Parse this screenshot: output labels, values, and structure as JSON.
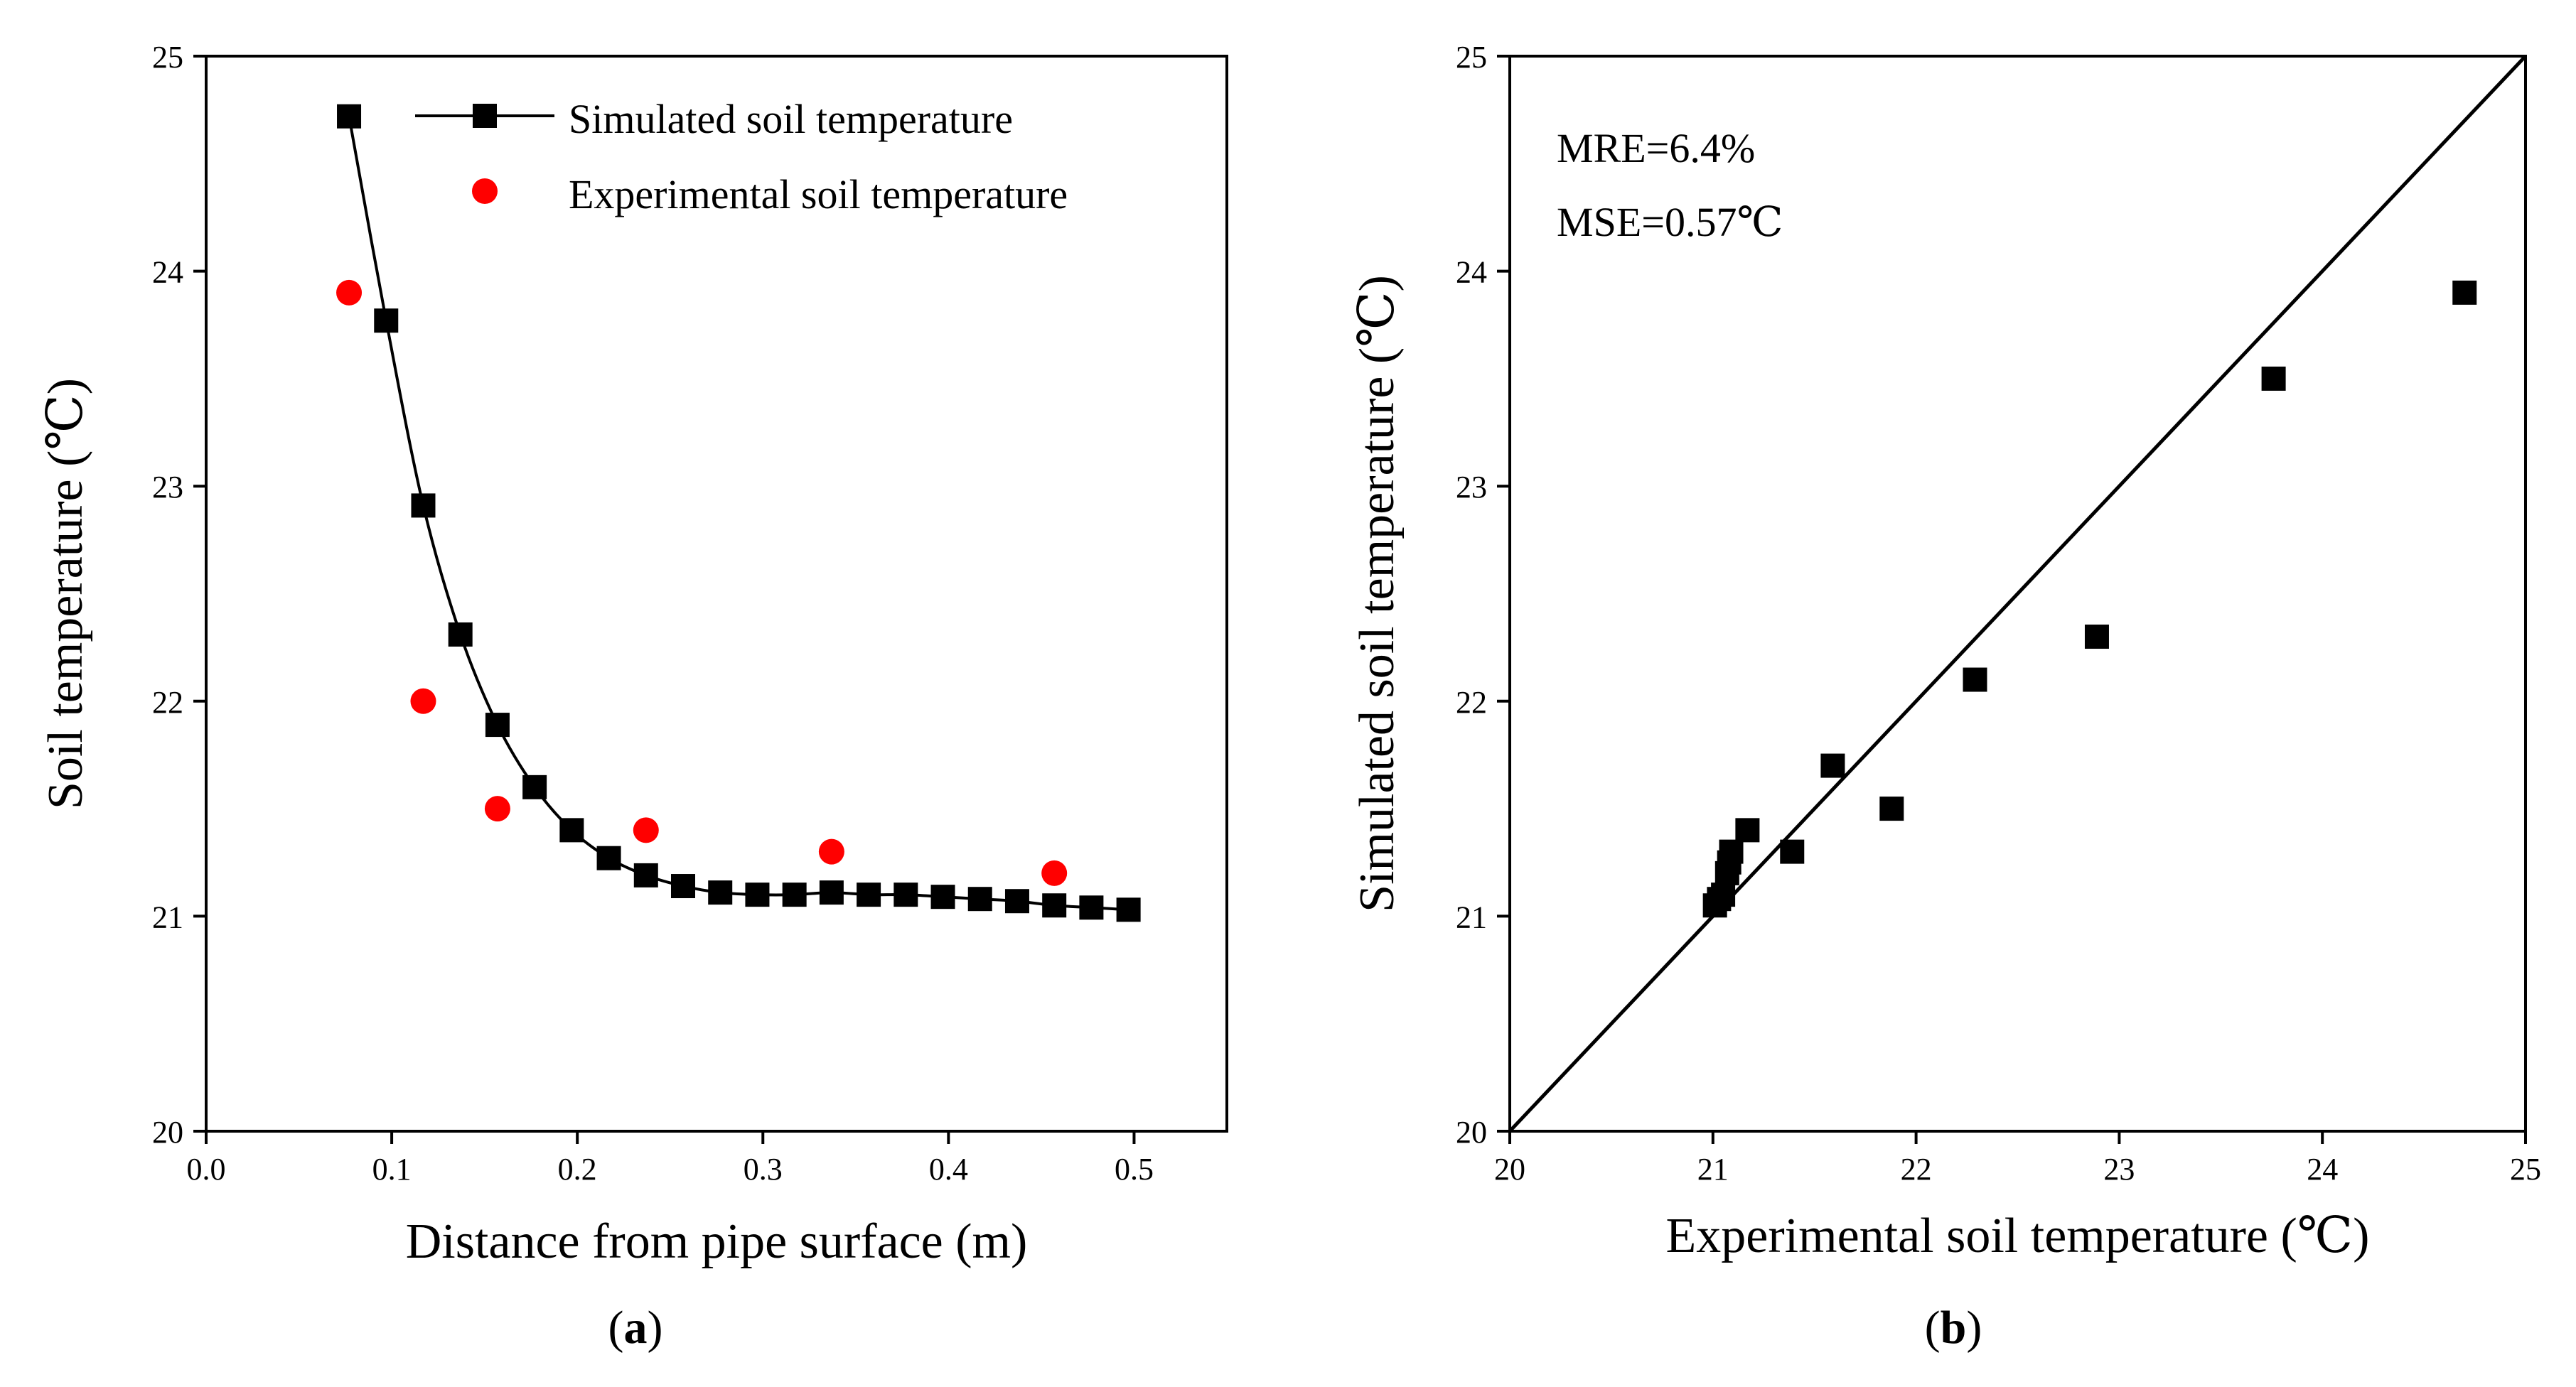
{
  "chart_data": [
    {
      "panel": "(a)",
      "panel_letter": "a",
      "type": "line",
      "xlabel": "Distance from pipe surface (m)",
      "ylabel": "Soil temperature (℃)",
      "xlim": [
        0.0,
        0.55
      ],
      "ylim": [
        20,
        25
      ],
      "xticks": [
        "0.0",
        "0.1",
        "0.2",
        "0.3",
        "0.4",
        "0.5"
      ],
      "yticks": [
        "20",
        "21",
        "22",
        "23",
        "24",
        "25"
      ],
      "grid": false,
      "legend_position": "top-right",
      "series": [
        {
          "name": "Simulated soil temperature",
          "style": "line+square",
          "color": "#000000",
          "x": [
            0.077,
            0.097,
            0.117,
            0.137,
            0.157,
            0.177,
            0.197,
            0.217,
            0.237,
            0.257,
            0.277,
            0.297,
            0.317,
            0.337,
            0.357,
            0.377,
            0.397,
            0.417,
            0.437,
            0.457,
            0.477,
            0.497
          ],
          "y": [
            24.72,
            23.77,
            22.91,
            22.31,
            21.89,
            21.6,
            21.4,
            21.27,
            21.19,
            21.14,
            21.11,
            21.1,
            21.1,
            21.11,
            21.1,
            21.1,
            21.09,
            21.08,
            21.07,
            21.05,
            21.04,
            21.03
          ]
        },
        {
          "name": "Experimental soil temperature",
          "style": "circle",
          "color": "#ff0000",
          "x": [
            0.077,
            0.117,
            0.157,
            0.237,
            0.337,
            0.457
          ],
          "y": [
            23.9,
            22.0,
            21.5,
            21.4,
            21.3,
            21.2
          ]
        }
      ]
    },
    {
      "panel": "(b)",
      "panel_letter": "b",
      "type": "scatter",
      "xlabel": "Experimental soil temperature (℃)",
      "ylabel": "Simulated soil temperature (℃)",
      "xlim": [
        20,
        25
      ],
      "ylim": [
        20,
        25
      ],
      "xticks": [
        "20",
        "21",
        "22",
        "23",
        "24",
        "25"
      ],
      "yticks": [
        "20",
        "21",
        "22",
        "23",
        "24",
        "25"
      ],
      "grid": false,
      "annotations": [
        "MRE=6.4%",
        "MSE=0.57℃"
      ],
      "reference_line": {
        "x": [
          20,
          25
        ],
        "y": [
          20,
          25
        ],
        "color": "#000000"
      },
      "series": [
        {
          "style": "square",
          "color": "#000000",
          "x": [
            21.01,
            21.03,
            21.05,
            21.07,
            21.08,
            21.09,
            21.17,
            21.39,
            21.59,
            21.88,
            22.29,
            22.89,
            23.76,
            24.7
          ],
          "y": [
            21.05,
            21.08,
            21.1,
            21.2,
            21.25,
            21.3,
            21.4,
            21.3,
            21.7,
            21.5,
            22.1,
            22.3,
            23.5,
            23.9
          ]
        }
      ]
    }
  ]
}
